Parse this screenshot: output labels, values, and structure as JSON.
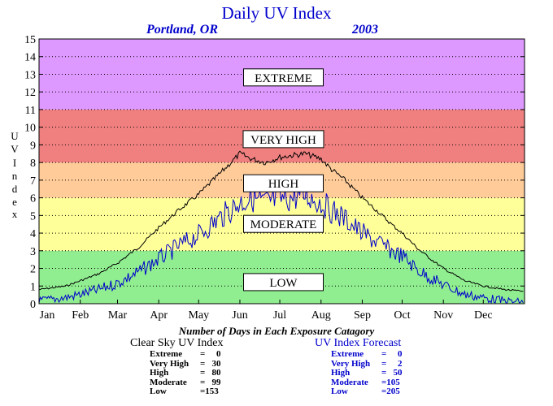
{
  "chart_data": {
    "type": "line",
    "title": "Daily UV Index",
    "subtitle_location": "Portland, OR",
    "subtitle_year": "2003",
    "ylabel": "UV Index",
    "ylim": [
      0,
      15
    ],
    "yticks": [
      "0",
      "1",
      "2",
      "3",
      "4",
      "5",
      "6",
      "7",
      "8",
      "9",
      "10",
      "11",
      "12",
      "13",
      "14",
      "15"
    ],
    "xlim": [
      0,
      365
    ],
    "xticks": [
      {
        "label": "Jan",
        "day": 0
      },
      {
        "label": "Feb",
        "day": 31
      },
      {
        "label": "Mar",
        "day": 59
      },
      {
        "label": "Apr",
        "day": 90
      },
      {
        "label": "May",
        "day": 120
      },
      {
        "label": "Jun",
        "day": 151
      },
      {
        "label": "Jul",
        "day": 181
      },
      {
        "label": "Aug",
        "day": 212
      },
      {
        "label": "Sep",
        "day": 243
      },
      {
        "label": "Oct",
        "day": 273
      },
      {
        "label": "Nov",
        "day": 304
      },
      {
        "label": "Dec",
        "day": 334
      }
    ],
    "grid": true,
    "bands": [
      {
        "label": "LOW",
        "from": 0,
        "to": 3,
        "color": "#90ee90",
        "label_y": 1.2
      },
      {
        "label": "MODERATE",
        "from": 3,
        "to": 6,
        "color": "#ffff99",
        "label_y": 4.5
      },
      {
        "label": "HIGH",
        "from": 6,
        "to": 8,
        "color": "#ffcc99",
        "label_y": 6.8
      },
      {
        "label": "VERY HIGH",
        "from": 8,
        "to": 11,
        "color": "#f08080",
        "label_y": 9.3
      },
      {
        "label": "EXTREME",
        "from": 11,
        "to": 15,
        "color": "#dd99ff",
        "label_y": 12.8
      }
    ],
    "series": [
      {
        "color": "#000000",
        "days": [
          0,
          10,
          20,
          31,
          45,
          59,
          75,
          90,
          105,
          120,
          135,
          151,
          160,
          170,
          181,
          190,
          200,
          212,
          220,
          230,
          243,
          255,
          265,
          273,
          285,
          295,
          304,
          320,
          334,
          350,
          364
        ],
        "values": [
          0.8,
          0.9,
          1.0,
          1.3,
          1.7,
          2.3,
          3.2,
          4.3,
          5.3,
          6.2,
          7.3,
          8.5,
          8.2,
          8.0,
          8.3,
          8.4,
          8.5,
          8.2,
          7.6,
          7.0,
          6.0,
          5.2,
          4.5,
          4.0,
          3.1,
          2.5,
          2.0,
          1.3,
          1.0,
          0.8,
          0.7
        ],
        "noise": 0.4
      },
      {
        "color": "#0000cc",
        "days": [
          0,
          10,
          20,
          31,
          45,
          59,
          75,
          90,
          105,
          120,
          135,
          151,
          160,
          170,
          181,
          190,
          200,
          212,
          220,
          230,
          243,
          255,
          265,
          273,
          285,
          295,
          304,
          320,
          334,
          350,
          364
        ],
        "values": [
          0.4,
          0.5,
          0.6,
          0.8,
          1.1,
          1.5,
          2.2,
          3.0,
          3.8,
          4.5,
          5.5,
          6.5,
          6.8,
          6.5,
          6.7,
          6.8,
          7.0,
          6.5,
          6.0,
          5.5,
          4.6,
          4.0,
          3.5,
          3.2,
          2.3,
          1.8,
          1.4,
          0.8,
          0.6,
          0.4,
          0.3
        ],
        "noise": 1.4
      }
    ]
  },
  "stats_caption": "Number of Days in Each Exposure Catagory",
  "clear_sky": {
    "title": "Clear Sky UV Index",
    "rows": [
      {
        "label": "Extreme",
        "value": "=     0"
      },
      {
        "label": "Very High",
        "value": "=   30"
      },
      {
        "label": "High",
        "value": "=   80"
      },
      {
        "label": "Moderate",
        "value": "=   99"
      },
      {
        "label": "Low",
        "value": "=153"
      }
    ]
  },
  "forecast": {
    "title": "UV Index Forecast",
    "rows": [
      {
        "label": "Extreme",
        "value": "=     0"
      },
      {
        "label": "Very High",
        "value": "=     2"
      },
      {
        "label": "High",
        "value": "=   50"
      },
      {
        "label": "Moderate",
        "value": "=105"
      },
      {
        "label": "Low",
        "value": "=205"
      }
    ]
  }
}
